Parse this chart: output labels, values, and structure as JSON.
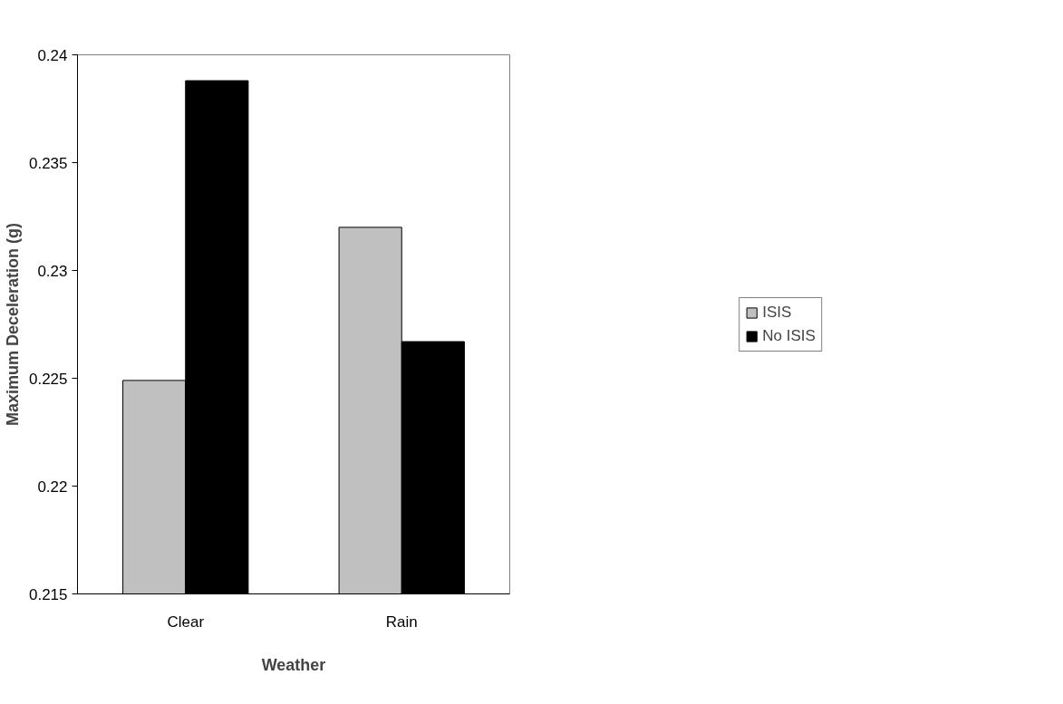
{
  "chart_data": {
    "type": "bar",
    "xlabel": "Weather",
    "ylabel": "Maximum Deceleration (g)",
    "categories": [
      "Clear",
      "Rain"
    ],
    "series": [
      {
        "name": "ISIS",
        "color": "#c0c0c0",
        "values": [
          0.2249,
          0.232
        ]
      },
      {
        "name": "No ISIS",
        "color": "#000000",
        "values": [
          0.2388,
          0.2267
        ]
      }
    ],
    "ylim": [
      0.215,
      0.24
    ],
    "yticks": [
      0.215,
      0.22,
      0.225,
      0.23,
      0.235,
      0.24
    ],
    "grid": false,
    "legend": "right"
  }
}
